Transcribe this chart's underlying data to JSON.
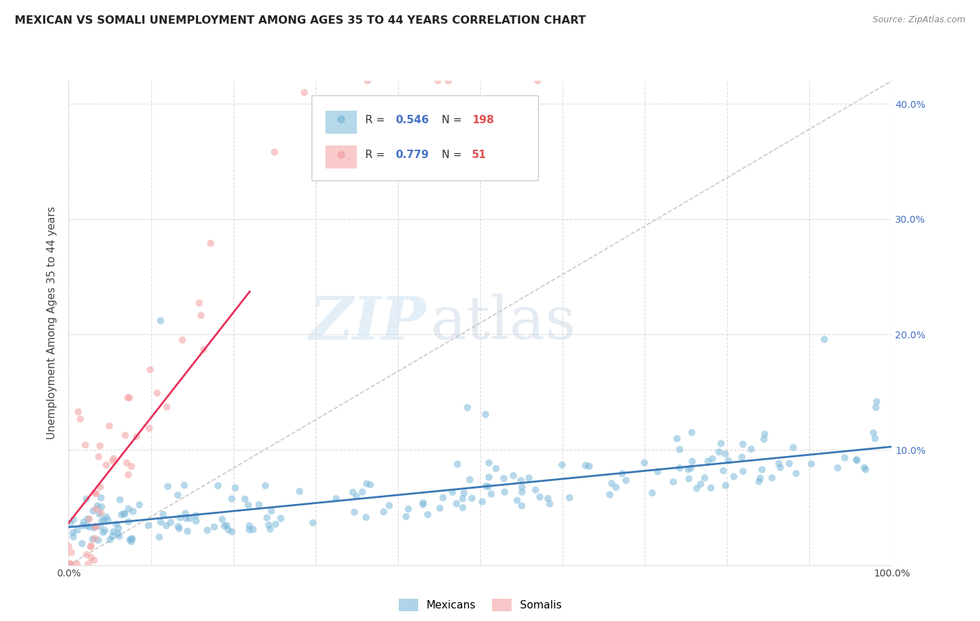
{
  "title": "MEXICAN VS SOMALI UNEMPLOYMENT AMONG AGES 35 TO 44 YEARS CORRELATION CHART",
  "source": "Source: ZipAtlas.com",
  "ylabel": "Unemployment Among Ages 35 to 44 years",
  "xlim": [
    0,
    1.0
  ],
  "ylim": [
    0,
    0.42
  ],
  "x_ticks": [
    0.0,
    0.1,
    0.2,
    0.3,
    0.4,
    0.5,
    0.6,
    0.7,
    0.8,
    0.9,
    1.0
  ],
  "x_tick_labels": [
    "0.0%",
    "",
    "",
    "",
    "",
    "",
    "",
    "",
    "",
    "",
    "100.0%"
  ],
  "y_ticks": [
    0.0,
    0.1,
    0.2,
    0.3,
    0.4
  ],
  "y_tick_labels_right": [
    "",
    "10.0%",
    "20.0%",
    "30.0%",
    "40.0%"
  ],
  "mexican_color": "#7ab8d9",
  "somali_color": "#f4a0a0",
  "mexican_line_color": "#3a78b5",
  "somali_line_color": "#e8305a",
  "R_mexican": 0.546,
  "N_mexican": 198,
  "R_somali": 0.779,
  "N_somali": 51,
  "watermark_zip": "ZIP",
  "watermark_atlas": "atlas",
  "legend_label_mexican": "Mexicans",
  "legend_label_somali": "Somalis",
  "background_color": "#ffffff",
  "grid_color": "#cccccc",
  "title_color": "#222222",
  "source_color": "#888888",
  "ylabel_color": "#444444",
  "tick_color_x": "#444444",
  "tick_color_y": "#4472c4",
  "legend_R_color": "#4472c4",
  "legend_N_color": "#e05050"
}
